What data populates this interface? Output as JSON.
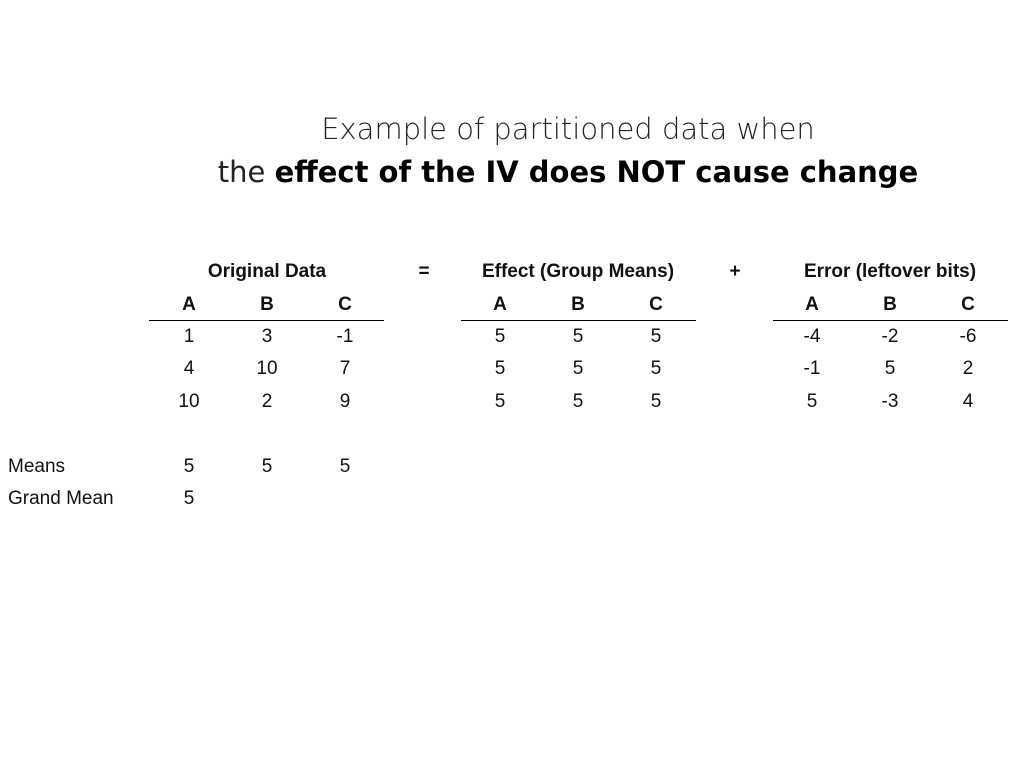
{
  "title": {
    "line1": "Example of partitioned data when",
    "line2_prefix": "the",
    "line2_bold": "effect of the IV does NOT cause change"
  },
  "operators": {
    "equals": "=",
    "plus": "+"
  },
  "tables": {
    "original": {
      "title": "Original Data",
      "columns": [
        "A",
        "B",
        "C"
      ],
      "rows": [
        [
          "1",
          "3",
          "-1"
        ],
        [
          "4",
          "10",
          "7"
        ],
        [
          "10",
          "2",
          "9"
        ]
      ],
      "means": [
        "5",
        "5",
        "5"
      ],
      "grand_mean": "5"
    },
    "effect": {
      "title": "Effect (Group Means)",
      "columns": [
        "A",
        "B",
        "C"
      ],
      "rows": [
        [
          "5",
          "5",
          "5"
        ],
        [
          "5",
          "5",
          "5"
        ],
        [
          "5",
          "5",
          "5"
        ]
      ]
    },
    "error": {
      "title": "Error (leftover bits)",
      "columns": [
        "A",
        "B",
        "C"
      ],
      "rows": [
        [
          "-4",
          "-2",
          "-6"
        ],
        [
          "-1",
          "5",
          "2"
        ],
        [
          "5",
          "-3",
          "4"
        ]
      ]
    }
  },
  "labels": {
    "means": "Means",
    "grand_mean": "Grand Mean"
  }
}
